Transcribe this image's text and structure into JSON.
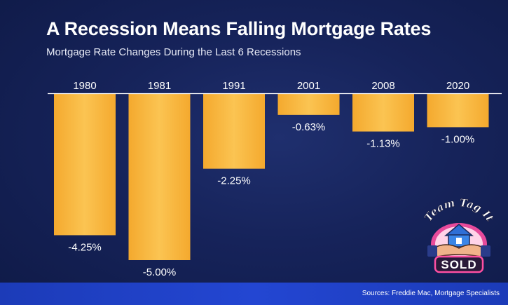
{
  "header": {
    "title": "A Recession Means Falling Mortgage Rates",
    "subtitle": "Mortgage Rate Changes During the Last 6 Recessions"
  },
  "footer": {
    "source": "Sources: Freddie Mac, Mortgage Specialists"
  },
  "logo": {
    "text_top": "Team Tag It",
    "text_bottom": "SOLD",
    "icon": "house-handshake-logo"
  },
  "colors": {
    "bar": "#f7b43c",
    "background": "#16235a",
    "footer": "#2346d2"
  },
  "chart_data": {
    "type": "bar",
    "title": "A Recession Means Falling Mortgage Rates",
    "subtitle": "Mortgage Rate Changes During the Last 6 Recessions",
    "categories": [
      "1980",
      "1981",
      "1991",
      "2001",
      "2008",
      "2020"
    ],
    "values": [
      -4.25,
      -5.0,
      -2.25,
      -0.63,
      -1.13,
      -1.0
    ],
    "labels": [
      "-4.25%",
      "-5.00%",
      "-2.25%",
      "-0.63%",
      "-1.13%",
      "-1.00%"
    ],
    "xlabel": "",
    "ylabel": "",
    "ylim": [
      -5.0,
      0
    ],
    "grid": false,
    "legend": "none",
    "category_axis_position": "top"
  }
}
